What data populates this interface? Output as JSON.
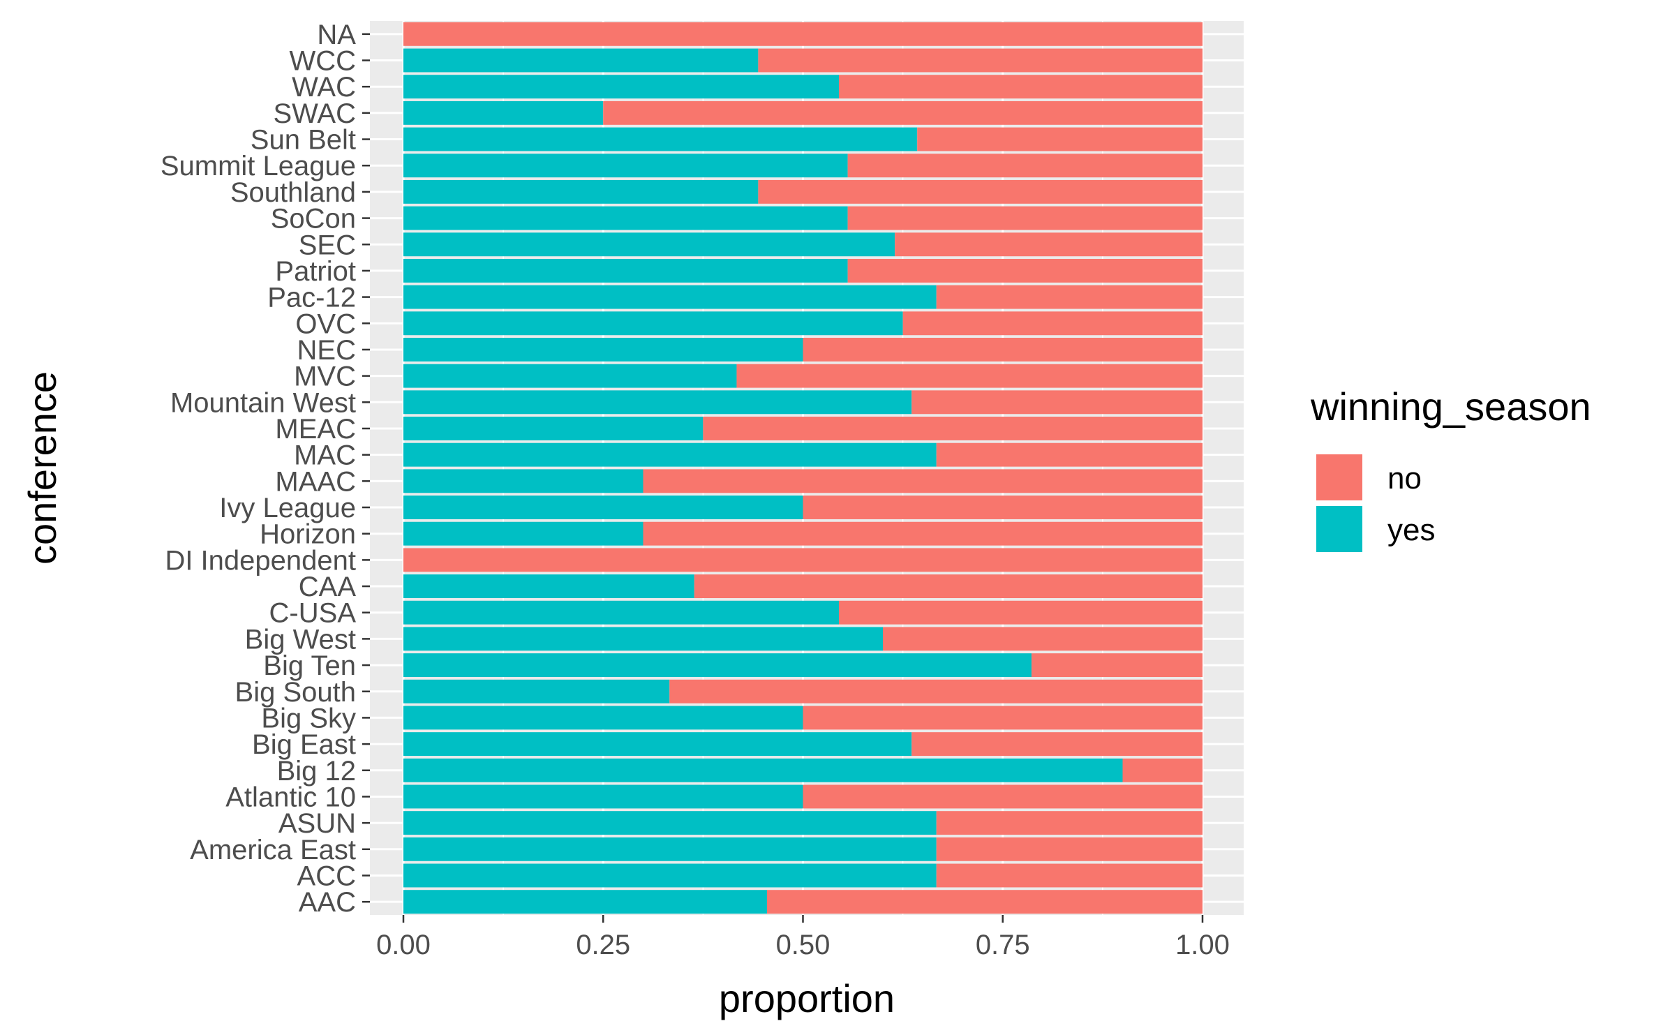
{
  "chart_data": {
    "type": "bar",
    "orientation": "horizontal",
    "stacked": "fill",
    "xlabel": "proportion",
    "ylabel": "conference",
    "xlim": [
      0,
      1
    ],
    "x_ticks": [
      "0.00",
      "0.25",
      "0.50",
      "0.75",
      "1.00"
    ],
    "x_tick_values": [
      0,
      0.25,
      0.5,
      0.75,
      1
    ],
    "grid": true,
    "legend": {
      "title": "winning_season",
      "placement": "right",
      "entries": [
        {
          "name": "no",
          "color": "#F8766D"
        },
        {
          "name": "yes",
          "color": "#00BFC4"
        }
      ]
    },
    "categories": [
      "AAC",
      "ACC",
      "America East",
      "ASUN",
      "Atlantic 10",
      "Big 12",
      "Big East",
      "Big Sky",
      "Big South",
      "Big Ten",
      "Big West",
      "C-USA",
      "CAA",
      "DI Independent",
      "Horizon",
      "Ivy League",
      "MAAC",
      "MAC",
      "MEAC",
      "Mountain West",
      "MVC",
      "NEC",
      "OVC",
      "Pac-12",
      "Patriot",
      "SEC",
      "SoCon",
      "Southland",
      "Summit League",
      "Sun Belt",
      "SWAC",
      "WAC",
      "WCC",
      "NA"
    ],
    "series": [
      {
        "name": "yes",
        "color": "#00BFC4",
        "values": [
          0.455,
          0.667,
          0.667,
          0.667,
          0.5,
          0.9,
          0.636,
          0.5,
          0.333,
          0.786,
          0.6,
          0.545,
          0.364,
          0.0,
          0.3,
          0.5,
          0.3,
          0.667,
          0.375,
          0.636,
          0.417,
          0.5,
          0.625,
          0.667,
          0.556,
          0.615,
          0.556,
          0.444,
          0.556,
          0.643,
          0.25,
          0.545,
          0.444,
          0.0
        ]
      },
      {
        "name": "no",
        "color": "#F8766D",
        "values": [
          0.545,
          0.333,
          0.333,
          0.333,
          0.5,
          0.1,
          0.364,
          0.5,
          0.667,
          0.214,
          0.4,
          0.455,
          0.636,
          1.0,
          0.7,
          0.5,
          0.7,
          0.333,
          0.625,
          0.364,
          0.583,
          0.5,
          0.375,
          0.333,
          0.444,
          0.385,
          0.444,
          0.556,
          0.444,
          0.357,
          0.75,
          0.455,
          0.556,
          1.0
        ]
      }
    ]
  },
  "style": {
    "panel_bg": "#EBEBEB",
    "grid_color": "#FFFFFF",
    "tick_color": "#333333",
    "tick_label_color": "#4D4D4D"
  }
}
